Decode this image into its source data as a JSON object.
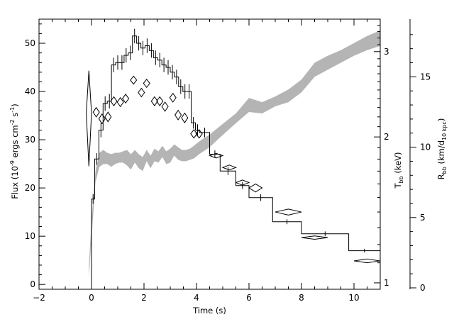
{
  "chart_data": {
    "type": "line",
    "title": "",
    "x_axis": {
      "label": "Time (s)",
      "range": [
        -2,
        11
      ],
      "ticks": [
        -2,
        0,
        2,
        4,
        6,
        8,
        10
      ]
    },
    "y_axes": {
      "flux": {
        "label_main": "Flux (10",
        "label_exp": "-9",
        "label_mid": " ergs cm",
        "label_exp2": "-2",
        "label_mid2": " s",
        "label_exp3": "-1",
        "label_end": ")",
        "range": [
          -1,
          55
        ],
        "ticks": [
          0,
          10,
          20,
          30,
          40,
          50
        ]
      },
      "temperature": {
        "label_main": "T",
        "label_sub": "bb",
        "label_end": " (keV)",
        "scale": "log",
        "range": [
          0.97,
          3.5
        ],
        "ticks": [
          1,
          2,
          3
        ]
      },
      "radius": {
        "label_main": "R",
        "label_sub": "bb",
        "label_mid": " (km/d",
        "label_sub2": "10 kpc",
        "label_end": ")",
        "range": [
          -0.1,
          19.1
        ],
        "ticks": [
          0,
          5,
          10,
          15
        ]
      }
    },
    "grid": false,
    "series": [
      {
        "kind": "flux-histogram",
        "color": "#000000",
        "bins": [
          {
            "x0": 0.0,
            "x1": 0.12,
            "y": 17.7,
            "err": 1.0
          },
          {
            "x0": 0.12,
            "x1": 0.28,
            "y": 26.0,
            "err": 1.2
          },
          {
            "x0": 0.28,
            "x1": 0.44,
            "y": 32.0,
            "err": 1.5
          },
          {
            "x0": 0.44,
            "x1": 0.6,
            "y": 37.5,
            "err": 1.5
          },
          {
            "x0": 0.6,
            "x1": 0.76,
            "y": 38.0,
            "err": 1.5
          },
          {
            "x0": 0.76,
            "x1": 0.92,
            "y": 45.5,
            "err": 1.5
          },
          {
            "x0": 0.92,
            "x1": 1.08,
            "y": 46.0,
            "err": 1.5
          },
          {
            "x0": 1.08,
            "x1": 1.24,
            "y": 46.0,
            "err": 1.5
          },
          {
            "x0": 1.24,
            "x1": 1.4,
            "y": 47.5,
            "err": 1.5
          },
          {
            "x0": 1.4,
            "x1": 1.56,
            "y": 48.0,
            "err": 1.5
          },
          {
            "x0": 1.56,
            "x1": 1.72,
            "y": 51.5,
            "err": 1.5
          },
          {
            "x0": 1.72,
            "x1": 1.88,
            "y": 50.0,
            "err": 1.5
          },
          {
            "x0": 1.88,
            "x1": 2.04,
            "y": 49.0,
            "err": 1.5
          },
          {
            "x0": 2.04,
            "x1": 2.2,
            "y": 49.5,
            "err": 1.5
          },
          {
            "x0": 2.2,
            "x1": 2.36,
            "y": 48.5,
            "err": 1.5
          },
          {
            "x0": 2.36,
            "x1": 2.52,
            "y": 47.0,
            "err": 1.5
          },
          {
            "x0": 2.52,
            "x1": 2.68,
            "y": 46.5,
            "err": 1.5
          },
          {
            "x0": 2.68,
            "x1": 2.84,
            "y": 45.5,
            "err": 1.5
          },
          {
            "x0": 2.84,
            "x1": 3.0,
            "y": 45.0,
            "err": 1.5
          },
          {
            "x0": 3.0,
            "x1": 3.16,
            "y": 44.0,
            "err": 1.5
          },
          {
            "x0": 3.16,
            "x1": 3.32,
            "y": 43.0,
            "err": 1.5
          },
          {
            "x0": 3.32,
            "x1": 3.48,
            "y": 41.0,
            "err": 1.5
          },
          {
            "x0": 3.48,
            "x1": 3.64,
            "y": 40.0,
            "err": 1.5
          },
          {
            "x0": 3.64,
            "x1": 3.8,
            "y": 40.0,
            "err": 1.5
          },
          {
            "x0": 3.8,
            "x1": 3.96,
            "y": 33.5,
            "err": 1.2
          },
          {
            "x0": 3.96,
            "x1": 4.12,
            "y": 32.0,
            "err": 1.2
          },
          {
            "x0": 4.12,
            "x1": 4.5,
            "y": 31.5,
            "err": 1.0
          },
          {
            "x0": 4.5,
            "x1": 4.9,
            "y": 27.0,
            "err": 0.8
          },
          {
            "x0": 4.9,
            "x1": 5.5,
            "y": 23.5,
            "err": 0.8
          },
          {
            "x0": 5.5,
            "x1": 6.0,
            "y": 20.5,
            "err": 0.7
          },
          {
            "x0": 6.0,
            "x1": 6.9,
            "y": 18.0,
            "err": 0.7
          },
          {
            "x0": 6.9,
            "x1": 8.0,
            "y": 13.0,
            "err": 0.5
          },
          {
            "x0": 8.0,
            "x1": 9.8,
            "y": 10.5,
            "err": 0.5
          },
          {
            "x0": 9.8,
            "x1": 11.0,
            "y": 7.0,
            "err": 0.4
          }
        ]
      },
      {
        "kind": "temperature-diamonds",
        "points": [
          {
            "x": -0.1,
            "y": 2.24,
            "dx": 0.1,
            "dy": 0.5
          },
          {
            "x": 0.18,
            "y": 2.25,
            "dx": 0.12,
            "dy": 0.05
          },
          {
            "x": 0.4,
            "y": 2.18,
            "dx": 0.12,
            "dy": 0.05
          },
          {
            "x": 0.63,
            "y": 2.2,
            "dx": 0.12,
            "dy": 0.05
          },
          {
            "x": 0.85,
            "y": 2.37,
            "dx": 0.12,
            "dy": 0.05
          },
          {
            "x": 1.1,
            "y": 2.36,
            "dx": 0.12,
            "dy": 0.05
          },
          {
            "x": 1.3,
            "y": 2.4,
            "dx": 0.12,
            "dy": 0.05
          },
          {
            "x": 1.6,
            "y": 2.62,
            "dx": 0.12,
            "dy": 0.05
          },
          {
            "x": 1.9,
            "y": 2.47,
            "dx": 0.12,
            "dy": 0.05
          },
          {
            "x": 2.1,
            "y": 2.58,
            "dx": 0.12,
            "dy": 0.05
          },
          {
            "x": 2.4,
            "y": 2.37,
            "dx": 0.12,
            "dy": 0.05
          },
          {
            "x": 2.6,
            "y": 2.37,
            "dx": 0.12,
            "dy": 0.05
          },
          {
            "x": 2.8,
            "y": 2.31,
            "dx": 0.12,
            "dy": 0.05
          },
          {
            "x": 3.1,
            "y": 2.41,
            "dx": 0.12,
            "dy": 0.05
          },
          {
            "x": 3.3,
            "y": 2.22,
            "dx": 0.12,
            "dy": 0.05
          },
          {
            "x": 3.55,
            "y": 2.19,
            "dx": 0.12,
            "dy": 0.05
          },
          {
            "x": 3.9,
            "y": 2.03,
            "dx": 0.12,
            "dy": 0.04
          },
          {
            "x": 4.1,
            "y": 2.03,
            "dx": 0.12,
            "dy": 0.04
          },
          {
            "x": 4.75,
            "y": 1.83,
            "dx": 0.25,
            "dy": 0.02
          },
          {
            "x": 5.25,
            "y": 1.73,
            "dx": 0.25,
            "dy": 0.02
          },
          {
            "x": 5.75,
            "y": 1.61,
            "dx": 0.25,
            "dy": 0.02
          },
          {
            "x": 6.25,
            "y": 1.57,
            "dx": 0.25,
            "dy": 0.03
          },
          {
            "x": 7.5,
            "y": 1.4,
            "dx": 0.5,
            "dy": 0.02
          },
          {
            "x": 8.5,
            "y": 1.24,
            "dx": 0.5,
            "dy": 0.01
          },
          {
            "x": 10.5,
            "y": 1.11,
            "dx": 0.5,
            "dy": 0.01
          }
        ]
      },
      {
        "kind": "radius-band",
        "color": "#b4b4b4",
        "x": [
          -0.1,
          0.0,
          0.15,
          0.3,
          0.45,
          0.6,
          0.75,
          0.9,
          1.05,
          1.2,
          1.35,
          1.5,
          1.65,
          1.8,
          1.95,
          2.1,
          2.25,
          2.4,
          2.55,
          2.7,
          2.85,
          3.0,
          3.15,
          3.3,
          3.45,
          3.6,
          3.75,
          3.9,
          4.1,
          4.5,
          4.9,
          5.5,
          6.0,
          6.5,
          7.0,
          7.5,
          8.0,
          8.5,
          9.0,
          9.5,
          10.0,
          10.5,
          11.0
        ],
        "low": [
          0.8,
          3.5,
          7.5,
          8.6,
          8.8,
          8.8,
          8.6,
          8.8,
          8.9,
          8.9,
          8.7,
          8.4,
          8.9,
          8.5,
          8.3,
          9.0,
          8.5,
          9.0,
          8.9,
          9.3,
          8.8,
          8.9,
          9.4,
          9.1,
          9.0,
          9.0,
          9.1,
          9.2,
          9.5,
          10.0,
          10.7,
          11.7,
          12.5,
          12.4,
          12.9,
          13.2,
          13.9,
          15.0,
          15.5,
          16.0,
          16.5,
          16.9,
          17.2
        ],
        "high": [
          1.6,
          4.8,
          8.3,
          9.6,
          9.8,
          9.6,
          9.5,
          9.6,
          9.6,
          9.7,
          9.8,
          9.5,
          9.8,
          9.5,
          9.3,
          9.8,
          9.4,
          9.9,
          9.7,
          10.1,
          9.7,
          9.9,
          10.2,
          10.0,
          9.8,
          9.8,
          9.9,
          10.1,
          10.4,
          10.9,
          11.5,
          12.4,
          13.5,
          13.2,
          13.6,
          14.1,
          14.8,
          16.0,
          16.5,
          16.9,
          17.4,
          17.9,
          18.3
        ]
      }
    ]
  }
}
